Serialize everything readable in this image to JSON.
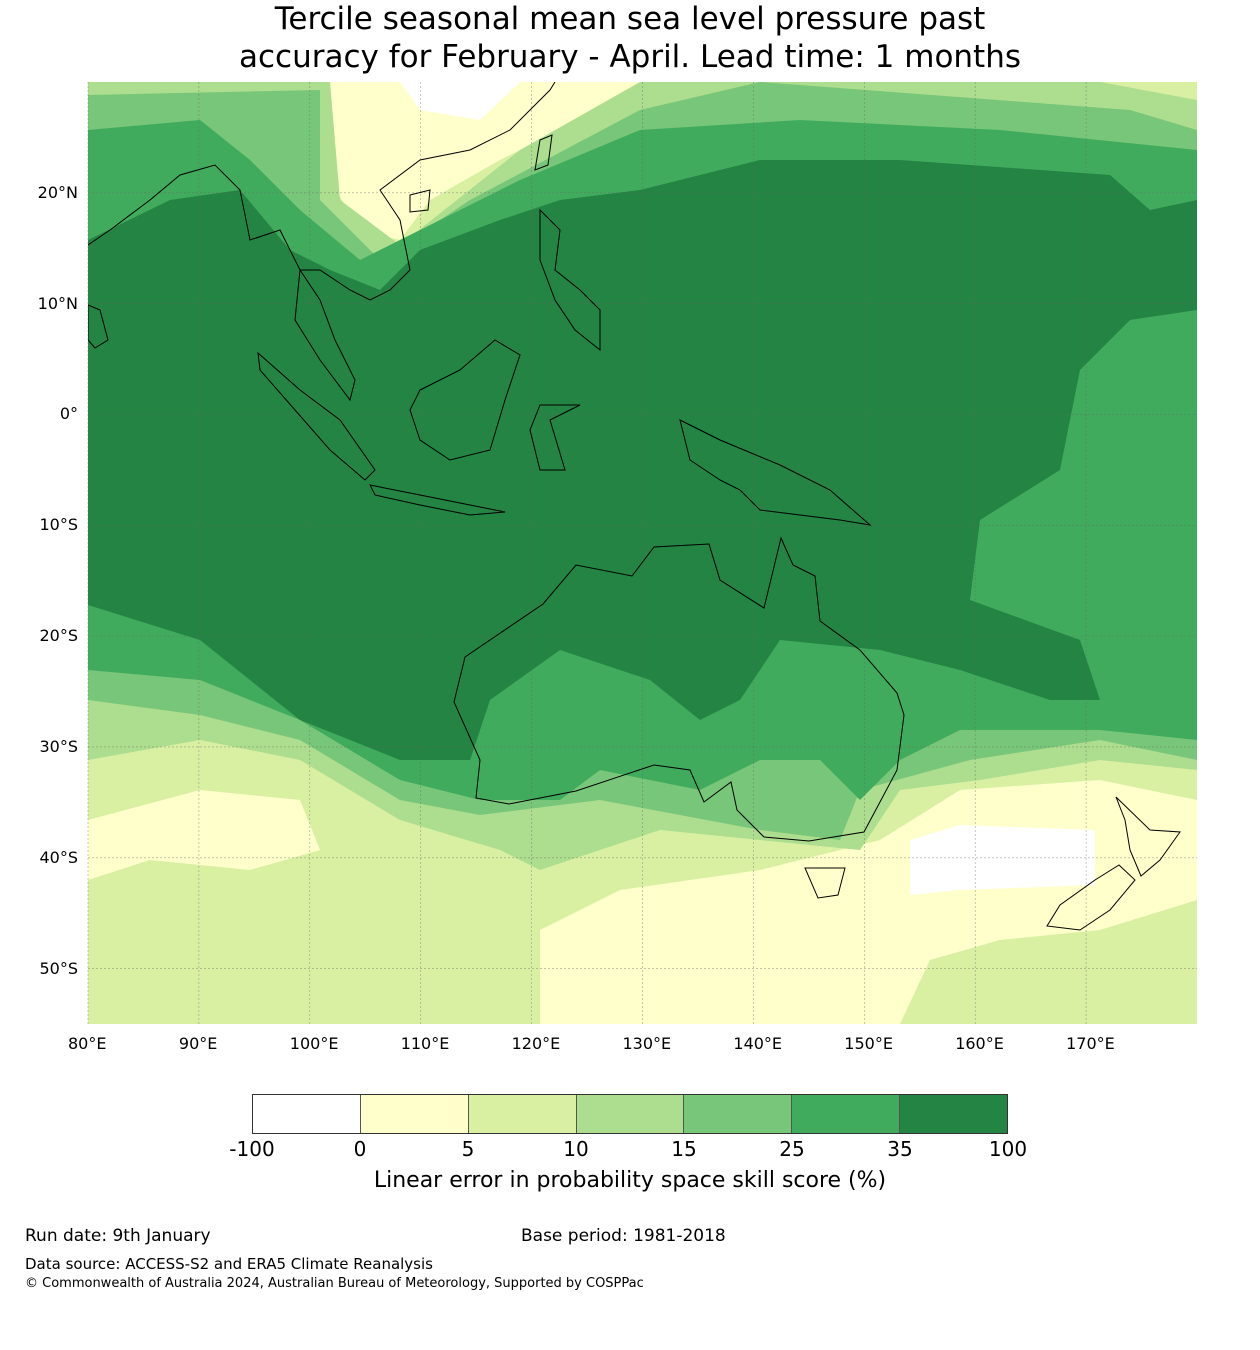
{
  "title": {
    "line1": "Tercile seasonal mean sea level pressure past",
    "line2": "accuracy for February - April. Lead time: 1 months"
  },
  "map": {
    "lon_range": [
      80,
      180
    ],
    "lat_range": [
      -55,
      30
    ],
    "lon_ticks": [
      80,
      90,
      100,
      110,
      120,
      130,
      140,
      150,
      160,
      170
    ],
    "lon_tick_labels": [
      "80°E",
      "90°E",
      "100°E",
      "110°E",
      "120°E",
      "130°E",
      "140°E",
      "150°E",
      "160°E",
      "170°E"
    ],
    "lat_ticks": [
      20,
      10,
      0,
      -10,
      -20,
      -30,
      -40,
      -50
    ],
    "lat_tick_labels": [
      "20°N",
      "10°N",
      "0°",
      "10°S",
      "20°S",
      "30°S",
      "40°S",
      "50°S"
    ]
  },
  "legend": {
    "colors": [
      "#ffffff",
      "#ffffcc",
      "#d9f0a3",
      "#addd8e",
      "#78c679",
      "#41ab5d",
      "#238443"
    ],
    "labels": [
      "-100",
      "0",
      "5",
      "10",
      "15",
      "25",
      "35",
      "100"
    ],
    "title": "Linear error in probability space skill score (%)"
  },
  "footer": {
    "run_date": "Run date: 9th January",
    "base_period": "Base period: 1981-2018",
    "data_source": "Data source: ACCESS-S2 and ERA5 Climate Reanalysis",
    "copyright": "© Commonwealth of Australia 2024, Australian Bureau of Meteorology, Supported by COSPPac"
  }
}
